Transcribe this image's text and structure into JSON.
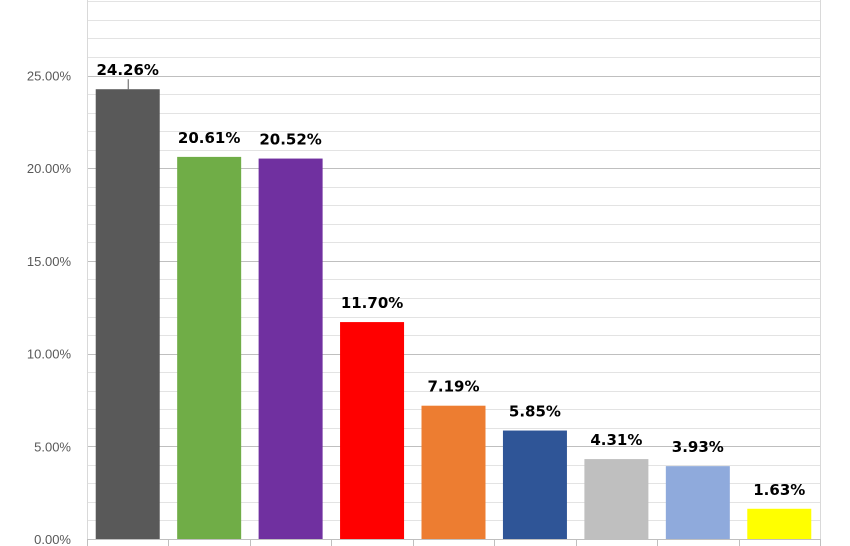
{
  "chart_data": {
    "type": "bar",
    "categories": [
      "",
      "",
      "",
      "",
      "",
      "",
      "",
      "",
      ""
    ],
    "values": [
      24.26,
      20.61,
      20.52,
      11.7,
      7.19,
      5.85,
      4.31,
      3.93,
      1.63
    ],
    "value_labels": [
      "24.26%",
      "20.61%",
      "20.52%",
      "11.70%",
      "7.19%",
      "5.85%",
      "4.31%",
      "3.93%",
      "1.63%"
    ],
    "colors": [
      "#595959",
      "#70ad47",
      "#7030a0",
      "#ff0000",
      "#ed7d31",
      "#2f5597",
      "#bfbfbf",
      "#8faadc",
      "#ffff00"
    ],
    "ylim": [
      0,
      29
    ],
    "yticks": [
      0,
      5,
      10,
      15,
      20,
      25
    ],
    "ytick_labels": [
      "0.00%",
      "5.00%",
      "10.00%",
      "15.00%",
      "20.00%",
      "25.00%"
    ],
    "grid": true,
    "title": "",
    "xlabel": "",
    "ylabel": ""
  }
}
